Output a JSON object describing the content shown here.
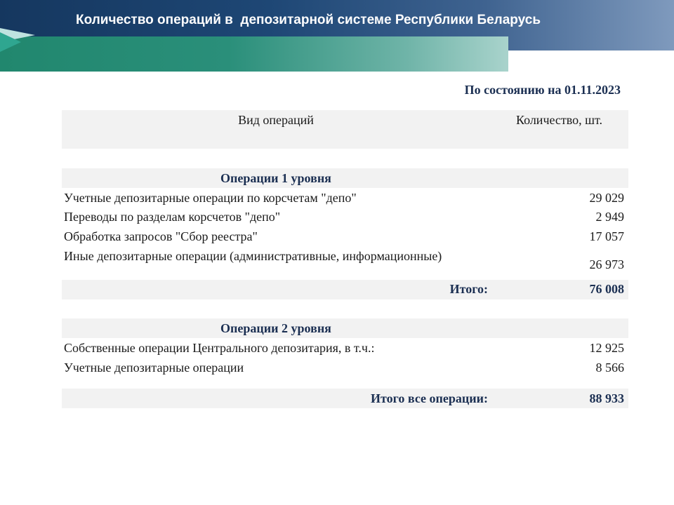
{
  "header": {
    "title": "Количество операций в  депозитарной системе Республики Беларусь"
  },
  "as_of": "По состоянию на 01.11.2023",
  "table": {
    "col_operation": "Вид операций",
    "col_count": "Количество, шт.",
    "level1": {
      "title": "Операции 1 уровня",
      "rows": [
        {
          "label": "Учетные депозитарные операции по корсчетам \"депо\"",
          "value": "29 029"
        },
        {
          "label": "Переводы по разделам корсчетов \"депо\"",
          "value": "2 949"
        },
        {
          "label": "Обработка запросов \"Сбор реестра\"",
          "value": "17 057"
        },
        {
          "label": "Иные депозитарные операции (административные, информационные)",
          "value": "26 973"
        }
      ],
      "total_label": "Итого:",
      "total_value": "76 008"
    },
    "level2": {
      "title": "Операции 2 уровня",
      "rows": [
        {
          "label": "Собственные операции Центрального депозитария, в т.ч.:",
          "value": "12 925"
        },
        {
          "label": "Учетные депозитарные операции",
          "value": "8 566"
        }
      ],
      "total_label": "Итого все операции:",
      "total_value": "88 933"
    }
  },
  "colors": {
    "banner_dark": "#15375f",
    "banner_light": "#7f9abd",
    "teal": "#21876e",
    "heading_text": "#1b2f52",
    "row_shade": "#f2f2f2"
  }
}
